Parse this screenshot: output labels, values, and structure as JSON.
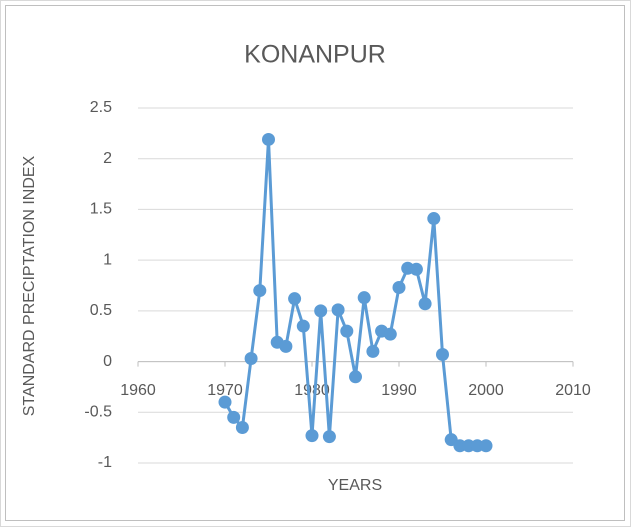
{
  "chart_data": {
    "type": "line",
    "title": "KONANPUR",
    "xlabel": "YEARS",
    "ylabel": "STANDARD PRECIPTATION INDEX",
    "x": [
      1970,
      1971,
      1972,
      1973,
      1974,
      1975,
      1976,
      1977,
      1978,
      1979,
      1980,
      1981,
      1982,
      1983,
      1984,
      1985,
      1986,
      1987,
      1988,
      1989,
      1990,
      1991,
      1992,
      1993,
      1994,
      1995,
      1996,
      1997,
      1998,
      1999,
      2000
    ],
    "values": [
      -0.4,
      -0.55,
      -0.65,
      0.03,
      0.7,
      2.19,
      0.19,
      0.15,
      0.62,
      0.35,
      -0.73,
      0.5,
      -0.74,
      0.51,
      0.3,
      -0.15,
      0.63,
      0.1,
      0.3,
      0.27,
      0.73,
      0.92,
      0.91,
      0.57,
      1.41,
      0.07,
      -0.77,
      -0.83,
      -0.83,
      -0.83,
      -0.83
    ],
    "color": "#5b9bd5",
    "xlim": [
      1960,
      2010
    ],
    "xticks": [
      1960,
      1970,
      1980,
      1990,
      2000,
      2010
    ],
    "ylim": [
      -1,
      2.5
    ],
    "yticks": [
      -1,
      -0.5,
      0,
      0.5,
      1,
      1.5,
      2,
      2.5
    ],
    "grid": true
  }
}
